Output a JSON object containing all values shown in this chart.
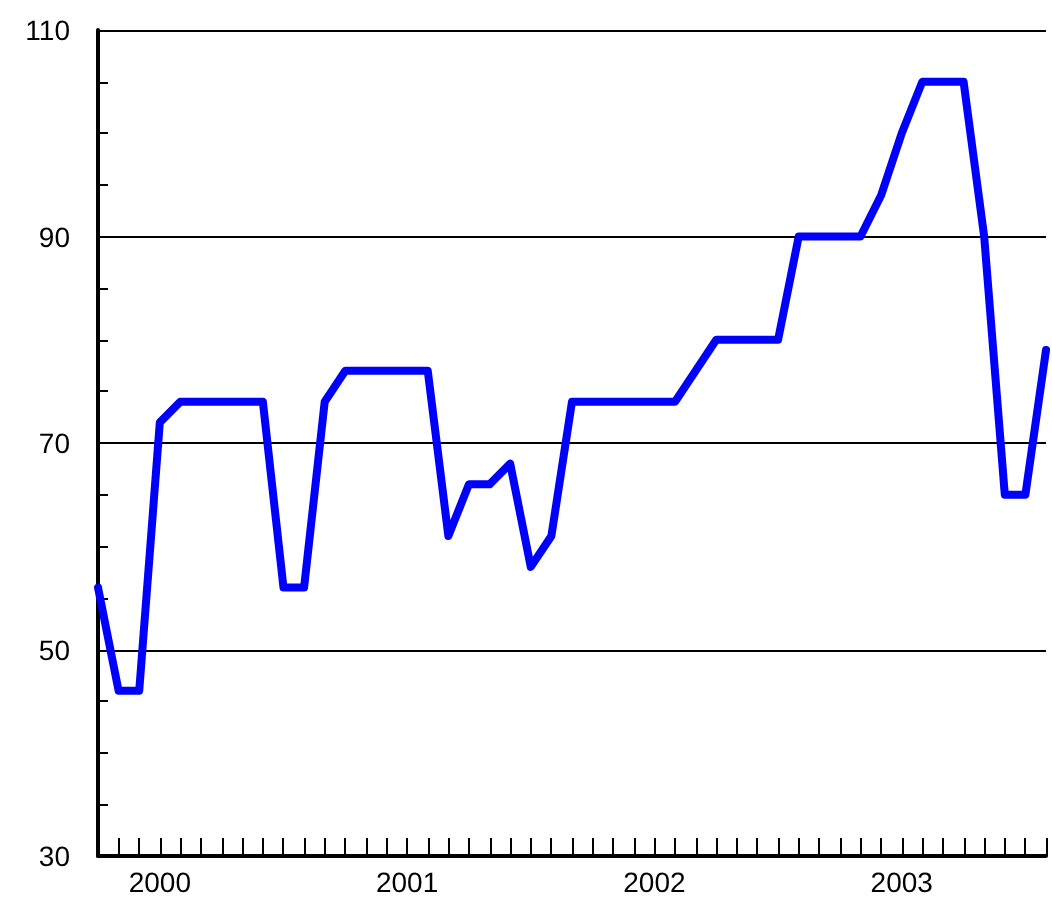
{
  "chart_data": {
    "type": "line",
    "categories": [
      null,
      null,
      null,
      "2000",
      null,
      null,
      null,
      null,
      null,
      null,
      null,
      null,
      null,
      null,
      null,
      "2001",
      null,
      null,
      null,
      null,
      null,
      null,
      null,
      null,
      null,
      null,
      null,
      "2002",
      null,
      null,
      null,
      null,
      null,
      null,
      null,
      null,
      null,
      null,
      null,
      "2003",
      null,
      null,
      null,
      null,
      null,
      null,
      null
    ],
    "series": [
      {
        "color": "#0000ff",
        "values": [
          56,
          46,
          46,
          72,
          74,
          74,
          74,
          74,
          74,
          56,
          56,
          74,
          77,
          77,
          77,
          77,
          77,
          61,
          66,
          66,
          68,
          58,
          61,
          74,
          74,
          74,
          74,
          74,
          74,
          77,
          80,
          80,
          80,
          80,
          90,
          90,
          90,
          90,
          94,
          100,
          105,
          105,
          105,
          90,
          65,
          65,
          79
        ]
      }
    ],
    "ylim": [
      30,
      110
    ],
    "yticks": [
      30,
      {
        "value": 35,
        "label": null
      },
      {
        "value": 40,
        "label": null
      },
      {
        "value": 45,
        "label": null
      },
      50,
      {
        "value": 55,
        "label": null
      },
      {
        "value": 60,
        "label": null
      },
      {
        "value": 65,
        "label": null
      },
      70,
      {
        "value": 75,
        "label": null
      },
      {
        "value": 80,
        "label": null
      },
      {
        "value": 85,
        "label": null
      },
      90,
      {
        "value": 95,
        "label": null
      },
      {
        "value": 100,
        "label": null
      },
      {
        "value": 105,
        "label": null
      },
      110
    ],
    "grid": "y",
    "marker": "none",
    "line_style": "solid"
  }
}
